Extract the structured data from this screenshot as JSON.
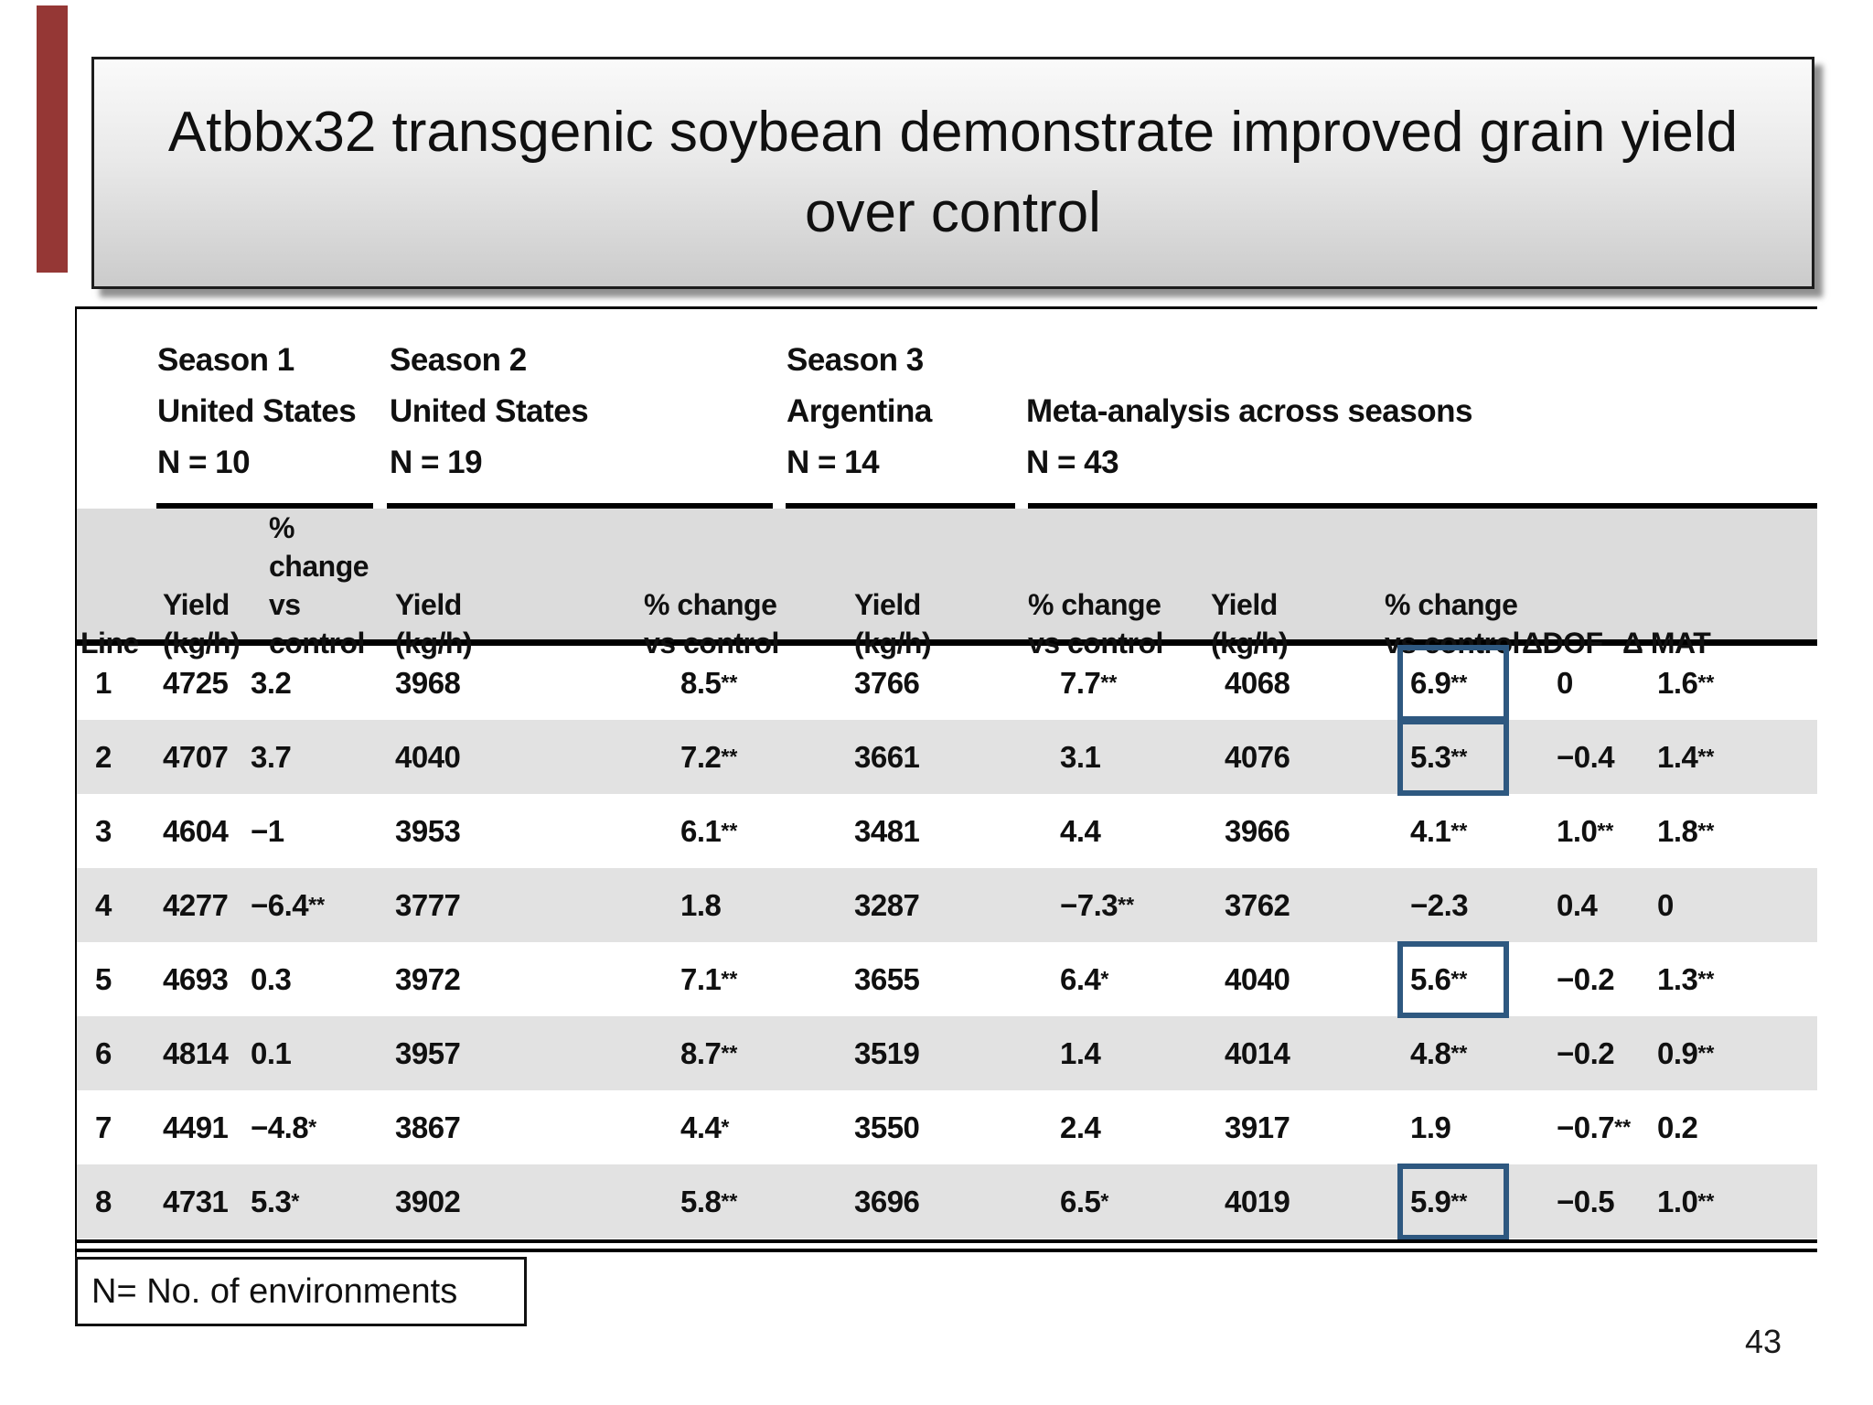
{
  "slide": {
    "title_lines": [
      "Atbbx32 transgenic soybean demonstrate improved grain yield",
      "over control"
    ],
    "title": "Atbbx32 transgenic soybean demonstrate improved grain yield over control",
    "note": "N= No. of environments",
    "page_number": "43"
  },
  "colors": {
    "accent_bar": "#953735",
    "highlight_box": "#2e5880",
    "header_band": "#dcdcdc",
    "row_stripe": "#e2e2e2"
  },
  "table": {
    "season_groups": [
      {
        "season": "Season 1",
        "location": "United States",
        "n": "N = 10"
      },
      {
        "season": "Season 2",
        "location": "United States",
        "n": "N = 19"
      },
      {
        "season": "Season 3",
        "location": "Argentina",
        "n": "N = 14"
      },
      {
        "season": "",
        "location": "Meta-analysis across seasons",
        "n": "N = 43"
      }
    ],
    "columns": [
      {
        "l1": "",
        "l2": "Line"
      },
      {
        "l1": "Yield",
        "l2": "(kg/h)"
      },
      {
        "l1": "% change",
        "l2": "vs control"
      },
      {
        "l1": "Yield",
        "l2": "(kg/h)"
      },
      {
        "l1": "% change",
        "l2": "vs control"
      },
      {
        "l1": "Yield",
        "l2": "(kg/h)"
      },
      {
        "l1": "% change",
        "l2": "vs control"
      },
      {
        "l1": "Yield",
        "l2": "(kg/h)"
      },
      {
        "l1": "% change",
        "l2": "vs control"
      },
      {
        "l1": "",
        "l2": "ΔDOF"
      },
      {
        "l1": "",
        "l2": "Δ MAT"
      }
    ],
    "rows": [
      {
        "values": [
          "1",
          "4725",
          "3.2",
          "3968",
          "8.5**",
          "3766",
          "7.7**",
          "4068",
          "6.9**",
          "0",
          "1.6**"
        ],
        "meta_boxed": true
      },
      {
        "values": [
          "2",
          "4707",
          "3.7",
          "4040",
          "7.2**",
          "3661",
          "3.1",
          "4076",
          "5.3**",
          "−0.4",
          "1.4**"
        ],
        "meta_boxed": true
      },
      {
        "values": [
          "3",
          "4604",
          "−1",
          "3953",
          "6.1**",
          "3481",
          "4.4",
          "3966",
          "4.1**",
          "1.0**",
          "1.8**"
        ],
        "meta_boxed": false
      },
      {
        "values": [
          "4",
          "4277",
          "−6.4**",
          "3777",
          "1.8",
          "3287",
          "−7.3**",
          "3762",
          "−2.3",
          "0.4",
          "0"
        ],
        "meta_boxed": false
      },
      {
        "values": [
          "5",
          "4693",
          "0.3",
          "3972",
          "7.1**",
          "3655",
          "6.4*",
          "4040",
          "5.6**",
          "−0.2",
          "1.3**"
        ],
        "meta_boxed": true
      },
      {
        "values": [
          "6",
          "4814",
          "0.1",
          "3957",
          "8.7**",
          "3519",
          "1.4",
          "4014",
          "4.8**",
          "−0.2",
          "0.9**"
        ],
        "meta_boxed": false
      },
      {
        "values": [
          "7",
          "4491",
          "−4.8*",
          "3867",
          "4.4*",
          "3550",
          "2.4",
          "3917",
          "1.9",
          "−0.7**",
          "0.2"
        ],
        "meta_boxed": false
      },
      {
        "values": [
          "8",
          "4731",
          "5.3*",
          "3902",
          "5.8**",
          "3696",
          "6.5*",
          "4019",
          "5.9**",
          "−0.5",
          "1.0**"
        ],
        "meta_boxed": true
      }
    ]
  }
}
